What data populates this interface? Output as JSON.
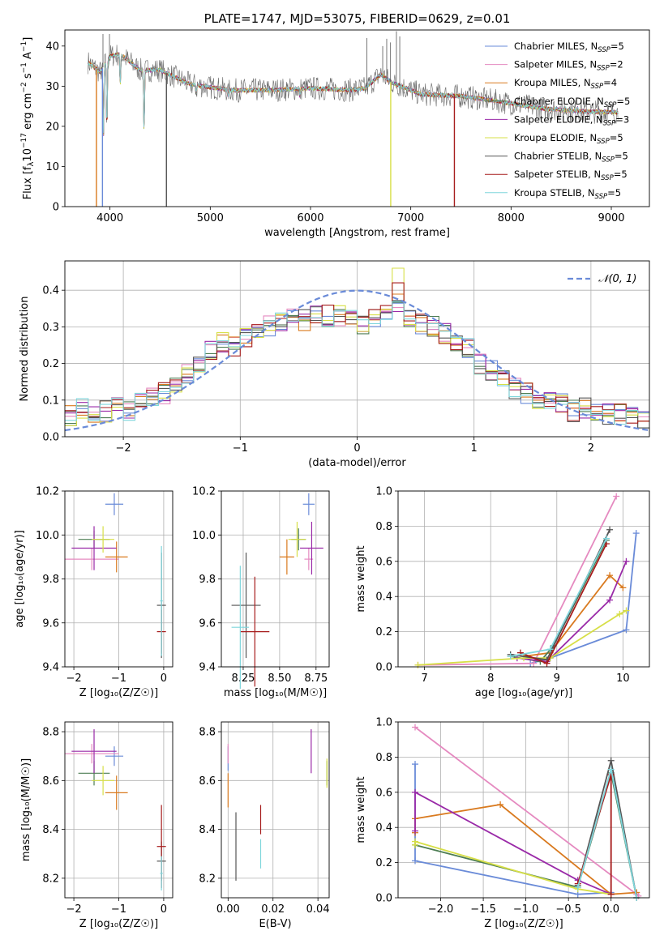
{
  "colors": [
    "#6a8bd8",
    "#e58ac0",
    "#d97a1f",
    "#4d7d53",
    "#9a2aa8",
    "#d7df47",
    "#555555",
    "#a61c1c",
    "#7fd6dc"
  ],
  "chart_data": [
    {
      "id": "spectrum",
      "type": "line",
      "title": "PLATE=1747, MJD=53075, FIBERID=0629, z=0.01",
      "xlabel": "wavelength [Angstrom, rest frame]",
      "ylabel_parts": [
        "Flux [f",
        "λ",
        "10",
        "−17",
        " erg cm",
        "−2",
        " s",
        "−1",
        " A",
        "−1",
        "]"
      ],
      "xlim": [
        3550,
        9380
      ],
      "ylim": [
        0,
        44
      ],
      "xticks": [
        4000,
        5000,
        6000,
        7000,
        8000,
        9000
      ],
      "yticks": [
        0,
        10,
        20,
        30,
        40
      ],
      "grid": false,
      "legend_position": "top-right",
      "legend": [
        {
          "name": "Chabrier MILES, N",
          "sub": "SSP",
          "suffix": "=5"
        },
        {
          "name": "Salpeter MILES, N",
          "sub": "SSP",
          "suffix": "=2"
        },
        {
          "name": "Kroupa MILES, N",
          "sub": "SSP",
          "suffix": "=4"
        },
        {
          "name": "Chabrier ELODIE, N",
          "sub": "SSP",
          "suffix": "=5"
        },
        {
          "name": "Salpeter ELODIE, N",
          "sub": "SSP",
          "suffix": "=3"
        },
        {
          "name": "Kroupa ELODIE, N",
          "sub": "SSP",
          "suffix": "=5"
        },
        {
          "name": "Chabrier STELIB, N",
          "sub": "SSP",
          "suffix": "=5"
        },
        {
          "name": "Salpeter STELIB, N",
          "sub": "SSP",
          "suffix": "=5"
        },
        {
          "name": "Kroupa STELIB, N",
          "sub": "SSP",
          "suffix": "=5"
        }
      ],
      "continuum": [
        [
          3780,
          36
        ],
        [
          3900,
          33.5
        ],
        [
          4000,
          37.5
        ],
        [
          4100,
          38
        ],
        [
          4300,
          34
        ],
        [
          4500,
          34
        ],
        [
          4800,
          30.5
        ],
        [
          5200,
          29
        ],
        [
          5600,
          29
        ],
        [
          6000,
          29.5
        ],
        [
          6400,
          29
        ],
        [
          6550,
          29.5
        ],
        [
          6700,
          33
        ],
        [
          6800,
          31
        ],
        [
          7100,
          28
        ],
        [
          7500,
          27.5
        ],
        [
          7800,
          26.5
        ],
        [
          8300,
          24.5
        ],
        [
          8700,
          23.7
        ],
        [
          9070,
          23.5
        ]
      ],
      "absorption_lines": [
        [
          3934,
          16
        ],
        [
          3969,
          18
        ],
        [
          4102,
          30
        ],
        [
          4340,
          18
        ],
        [
          4861,
          28.5
        ],
        [
          5175,
          27.5
        ],
        [
          5893,
          27.5
        ],
        [
          8542,
          24.5
        ],
        [
          8662,
          24.5
        ]
      ],
      "emission_spikes": [
        [
          3930,
          43
        ],
        [
          3995,
          43
        ],
        [
          6563,
          42
        ],
        [
          6720,
          40
        ],
        [
          6760,
          41.8
        ],
        [
          6798,
          40.9
        ],
        [
          6857,
          43.7
        ],
        [
          6890,
          42.4
        ]
      ],
      "truncated_models": [
        [
          4563,
          6
        ],
        [
          3865,
          2
        ],
        [
          3925,
          0
        ],
        [
          6800,
          5
        ],
        [
          7435,
          7
        ]
      ]
    },
    {
      "id": "residuals",
      "type": "histogram",
      "xlabel": "(data-model)/error",
      "ylabel": "Normed distribution",
      "xlim": [
        -2.5,
        2.5
      ],
      "ylim": [
        0,
        0.48
      ],
      "xticks": [
        -2,
        -1,
        0,
        1,
        2
      ],
      "xtick_labels": [
        "−2",
        "−1",
        "0",
        "1",
        "2"
      ],
      "yticks": [
        0.0,
        0.1,
        0.2,
        0.3,
        0.4
      ],
      "ytick_labels": [
        "0.0",
        "0.1",
        "0.2",
        "0.3",
        "0.4"
      ],
      "grid": true,
      "legend_position": "top-right",
      "legend": "𝒩(0, 1)",
      "bin_width": 0.1,
      "bin_starts": [
        -2.5,
        -2.4,
        -2.3,
        -2.2,
        -2.1,
        -2.0,
        -1.9,
        -1.8,
        -1.7,
        -1.6,
        -1.5,
        -1.4,
        -1.3,
        -1.2,
        -1.1,
        -1.0,
        -0.9,
        -0.8,
        -0.7,
        -0.6,
        -0.5,
        -0.4,
        -0.3,
        -0.2,
        -0.1,
        0.0,
        0.1,
        0.2,
        0.3,
        0.4,
        0.5,
        0.6,
        0.7,
        0.8,
        0.9,
        1.0,
        1.1,
        1.2,
        1.3,
        1.4,
        1.5,
        1.6,
        1.7,
        1.8,
        1.9,
        2.0,
        2.1,
        2.2,
        2.3,
        2.4
      ],
      "base": [
        0.06,
        0.08,
        0.06,
        0.07,
        0.08,
        0.07,
        0.09,
        0.11,
        0.12,
        0.14,
        0.17,
        0.2,
        0.24,
        0.26,
        0.25,
        0.27,
        0.28,
        0.3,
        0.31,
        0.33,
        0.32,
        0.34,
        0.33,
        0.33,
        0.32,
        0.31,
        0.33,
        0.34,
        0.36,
        0.33,
        0.31,
        0.3,
        0.28,
        0.25,
        0.24,
        0.2,
        0.18,
        0.15,
        0.13,
        0.12,
        0.1,
        0.1,
        0.09,
        0.07,
        0.08,
        0.07,
        0.06,
        0.06,
        0.05,
        0.05
      ]
    },
    {
      "id": "age_vs_Z",
      "type": "scatter",
      "xlabel": "Z [log₁₀(Z/Z☉)]",
      "ylabel": "age  [log₁₀(age/yr)]",
      "xlim": [
        -2.2,
        0.2
      ],
      "ylim": [
        9.4,
        10.2
      ],
      "xticks": [
        -2,
        -1,
        0
      ],
      "xtick_labels": [
        "−2",
        "−1",
        "0"
      ],
      "yticks": [
        9.4,
        9.6,
        9.8,
        10.0,
        10.2
      ],
      "ytick_labels": [
        "9.4",
        "9.6",
        "9.8",
        "10.0",
        "10.2"
      ],
      "grid": true,
      "points": [
        {
          "x": -1.1,
          "y": 10.14,
          "xerr": 0.2,
          "yerr": 0.05
        },
        {
          "x": -1.6,
          "y": 9.89,
          "xerr": 0.6,
          "yerr": 0.05
        },
        {
          "x": -1.05,
          "y": 9.9,
          "xerr": 0.25,
          "yerr": 0.07
        },
        {
          "x": -1.55,
          "y": 9.98,
          "xerr": 0.35,
          "yerr": 0.04
        },
        {
          "x": -1.55,
          "y": 9.94,
          "xerr": 0.5,
          "yerr": 0.1
        },
        {
          "x": -1.35,
          "y": 9.98,
          "xerr": 0.25,
          "yerr": 0.06
        },
        {
          "x": -0.05,
          "y": 9.68,
          "xerr": 0.1,
          "yerr": 0.24
        },
        {
          "x": -0.05,
          "y": 9.56,
          "xerr": 0.1,
          "yerr": 0.1
        },
        {
          "x": -0.05,
          "y": 9.7,
          "xerr": 0.03,
          "yerr": 0.25
        }
      ]
    },
    {
      "id": "age_vs_mass",
      "type": "scatter",
      "xlabel": "mass [log₁₀(M/M☉)]",
      "ylabel": "",
      "xlim": [
        8.1,
        8.84
      ],
      "ylim": [
        9.4,
        10.2
      ],
      "xticks": [
        8.25,
        8.5,
        8.75
      ],
      "xtick_labels": [
        "8.25",
        "8.50",
        "8.75"
      ],
      "yticks": [
        9.4,
        9.6,
        9.8,
        10.0,
        10.2
      ],
      "ytick_labels": [
        "9.4",
        "9.6",
        "9.8",
        "10.0",
        "10.2"
      ],
      "grid": true,
      "points": [
        {
          "x": 8.7,
          "y": 10.14,
          "xerr": 0.04,
          "yerr": 0.05
        },
        {
          "x": 8.7,
          "y": 9.89,
          "xerr": 0.03,
          "yerr": 0.05
        },
        {
          "x": 8.55,
          "y": 9.9,
          "xerr": 0.05,
          "yerr": 0.08
        },
        {
          "x": 8.63,
          "y": 9.98,
          "xerr": 0.05,
          "yerr": 0.05
        },
        {
          "x": 8.72,
          "y": 9.94,
          "xerr": 0.08,
          "yerr": 0.12
        },
        {
          "x": 8.62,
          "y": 9.98,
          "xerr": 0.06,
          "yerr": 0.08
        },
        {
          "x": 8.27,
          "y": 9.68,
          "xerr": 0.1,
          "yerr": 0.24
        },
        {
          "x": 8.33,
          "y": 9.56,
          "xerr": 0.1,
          "yerr": 0.25
        },
        {
          "x": 8.23,
          "y": 9.58,
          "xerr": 0.06,
          "yerr": 0.28
        }
      ]
    },
    {
      "id": "weight_vs_age",
      "type": "line",
      "xlabel": "age  [log₁₀(age/yr)]",
      "ylabel": "mass weight",
      "xlim": [
        6.6,
        10.4
      ],
      "ylim": [
        0,
        1
      ],
      "xticks": [
        7,
        8,
        9,
        10
      ],
      "xtick_labels": [
        "7",
        "8",
        "9",
        "10"
      ],
      "yticks": [
        0,
        0.2,
        0.4,
        0.6,
        0.8,
        1.0
      ],
      "ytick_labels": [
        "0.0",
        "0.2",
        "0.4",
        "0.6",
        "0.8",
        "1.0"
      ],
      "grid": true,
      "series": [
        {
          "x": [
            8.6,
            8.9,
            10.05,
            10.2
          ],
          "y": [
            0.02,
            0.05,
            0.21,
            0.76
          ]
        },
        {
          "x": [
            6.9,
            8.65,
            9.9
          ],
          "y": [
            0.01,
            0.02,
            0.97
          ]
        },
        {
          "x": [
            8.5,
            8.9,
            9.8,
            10.0
          ],
          "y": [
            0.06,
            0.08,
            0.52,
            0.45
          ]
        },
        {
          "x": [
            8.3,
            8.75,
            8.95,
            9.75
          ],
          "y": [
            0.06,
            0.03,
            0.12,
            0.72
          ]
        },
        {
          "x": [
            8.4,
            8.85,
            9.8,
            10.05
          ],
          "y": [
            0.05,
            0.03,
            0.38,
            0.6
          ]
        },
        {
          "x": [
            6.9,
            8.5,
            8.9,
            9.95,
            10.05
          ],
          "y": [
            0.01,
            0.05,
            0.05,
            0.3,
            0.32
          ]
        },
        {
          "x": [
            8.3,
            8.85,
            9.8
          ],
          "y": [
            0.07,
            0.04,
            0.78
          ]
        },
        {
          "x": [
            8.45,
            8.85,
            9.75
          ],
          "y": [
            0.08,
            0.02,
            0.7
          ]
        },
        {
          "x": [
            8.3,
            8.9,
            9.75
          ],
          "y": [
            0.06,
            0.1,
            0.73
          ]
        }
      ]
    },
    {
      "id": "mass_vs_Z",
      "type": "scatter",
      "xlabel": "Z [log₁₀(Z/Z☉)]",
      "ylabel": "mass [log₁₀(M/M☉)]",
      "xlim": [
        -2.2,
        0.2
      ],
      "ylim": [
        8.12,
        8.84
      ],
      "xticks": [
        -2,
        -1,
        0
      ],
      "xtick_labels": [
        "−2",
        "−1",
        "0"
      ],
      "yticks": [
        8.2,
        8.4,
        8.6,
        8.8
      ],
      "ytick_labels": [
        "8.2",
        "8.4",
        "8.6",
        "8.8"
      ],
      "grid": true,
      "points": [
        {
          "x": -1.1,
          "y": 8.7,
          "xerr": 0.2,
          "yerr": 0.04
        },
        {
          "x": -1.6,
          "y": 8.71,
          "xerr": 0.6,
          "yerr": 0.04
        },
        {
          "x": -1.05,
          "y": 8.55,
          "xerr": 0.25,
          "yerr": 0.07
        },
        {
          "x": -1.55,
          "y": 8.63,
          "xerr": 0.35,
          "yerr": 0.05
        },
        {
          "x": -1.55,
          "y": 8.72,
          "xerr": 0.5,
          "yerr": 0.09
        },
        {
          "x": -1.35,
          "y": 8.6,
          "xerr": 0.25,
          "yerr": 0.06
        },
        {
          "x": -0.05,
          "y": 8.27,
          "xerr": 0.1,
          "yerr": 0.08
        },
        {
          "x": -0.05,
          "y": 8.33,
          "xerr": 0.1,
          "yerr": 0.17
        },
        {
          "x": -0.05,
          "y": 8.22,
          "xerr": 0.03,
          "yerr": 0.07
        }
      ]
    },
    {
      "id": "mass_vs_ebv",
      "type": "scatter",
      "xlabel": "E(B-V)",
      "ylabel": "",
      "xlim": [
        -0.003,
        0.045
      ],
      "ylim": [
        8.12,
        8.84
      ],
      "xticks": [
        0.0,
        0.02,
        0.04
      ],
      "xtick_labels": [
        "0.00",
        "0.02",
        "0.04"
      ],
      "yticks": [
        8.2,
        8.4,
        8.6,
        8.8
      ],
      "ytick_labels": [
        "8.2",
        "8.4",
        "8.6",
        "8.8"
      ],
      "grid": true,
      "points": [
        {
          "x": 0.0,
          "y": 8.69,
          "xerr": 0,
          "yerr": 0.05
        },
        {
          "x": 0.0,
          "y": 8.71,
          "xerr": 0,
          "yerr": 0.04
        },
        {
          "x": 0.0,
          "y": 8.56,
          "xerr": 0,
          "yerr": 0.07
        },
        {
          "x": 0.044,
          "y": 8.63,
          "xerr": 0,
          "yerr": 0.05
        },
        {
          "x": 0.037,
          "y": 8.72,
          "xerr": 0,
          "yerr": 0.09
        },
        {
          "x": 0.044,
          "y": 8.63,
          "xerr": 0,
          "yerr": 0.06
        },
        {
          "x": 0.0035,
          "y": 8.33,
          "xerr": 0,
          "yerr": 0.14
        },
        {
          "x": 0.0145,
          "y": 8.44,
          "xerr": 0,
          "yerr": 0.06
        },
        {
          "x": 0.0145,
          "y": 8.3,
          "xerr": 0,
          "yerr": 0.06
        }
      ]
    },
    {
      "id": "weight_vs_Z",
      "type": "line",
      "xlabel": "Z [log₁₀(Z/Z☉)]",
      "ylabel": "mass weight",
      "xlim": [
        -2.5,
        0.45
      ],
      "ylim": [
        0,
        1
      ],
      "xticks": [
        -2.0,
        -1.5,
        -1.0,
        -0.5,
        0.0
      ],
      "xtick_labels": [
        "−2.0",
        "−1.5",
        "−1.0",
        "−0.5",
        "0.0"
      ],
      "yticks": [
        0,
        0.2,
        0.4,
        0.6,
        0.8,
        1.0
      ],
      "ytick_labels": [
        "0.0",
        "0.2",
        "0.4",
        "0.6",
        "0.8",
        "1.0"
      ],
      "grid": true,
      "series": [
        {
          "x": [
            -2.3,
            -2.3,
            -0.39,
            0.0
          ],
          "y": [
            0.76,
            0.21,
            0.02,
            0.03
          ]
        },
        {
          "x": [
            -2.3,
            0.3,
            0.32
          ],
          "y": [
            0.97,
            0.02,
            0.01
          ]
        },
        {
          "x": [
            -2.3,
            -2.3,
            -1.3,
            0.0,
            0.3
          ],
          "y": [
            0.37,
            0.45,
            0.53,
            0.02,
            0.03
          ]
        },
        {
          "x": [
            -2.3,
            -0.39,
            0.0,
            0.3
          ],
          "y": [
            0.3,
            0.06,
            0.71,
            0.0
          ]
        },
        {
          "x": [
            -2.3,
            -2.3,
            -0.39,
            0.0
          ],
          "y": [
            0.38,
            0.6,
            0.1,
            0.02
          ]
        },
        {
          "x": [
            -2.3,
            -2.3,
            -0.39,
            0.0
          ],
          "y": [
            0.3,
            0.32,
            0.05,
            0.02
          ]
        },
        {
          "x": [
            -0.39,
            0.0,
            0.3
          ],
          "y": [
            0.07,
            0.78,
            0.0
          ]
        },
        {
          "x": [
            -0.39,
            0.0,
            0.0
          ],
          "y": [
            0.08,
            0.7,
            0.02
          ]
        },
        {
          "x": [
            -0.39,
            0.0,
            0.3
          ],
          "y": [
            0.06,
            0.73,
            0.0
          ]
        }
      ]
    }
  ]
}
